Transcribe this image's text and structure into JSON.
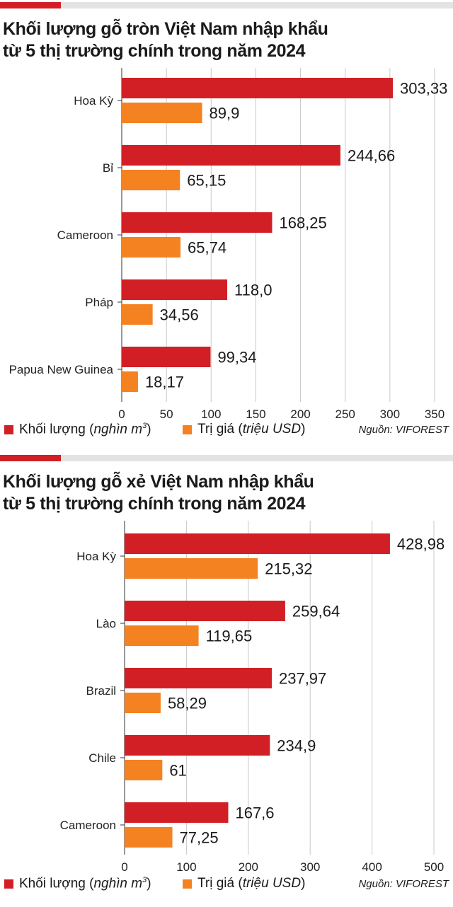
{
  "colors": {
    "accent": "#d21f26",
    "volume": "#d21f26",
    "value": "#f58220",
    "grid": "#c8c8c8",
    "bar_top": "#e3e3e3"
  },
  "chart_data": [
    {
      "type": "bar",
      "orientation": "horizontal",
      "title": "Khối lượng gỗ tròn Việt Nam nhập khẩu từ 5 thị trường chính trong năm 2024",
      "categories": [
        "Hoa Kỳ",
        "Bỉ",
        "Cameroon",
        "Pháp",
        "Papua New Guinea"
      ],
      "series": [
        {
          "name": "Khối lượng (nghìn m3)",
          "values": [
            303.33,
            244.66,
            168.25,
            118.0,
            99.34
          ],
          "labels": [
            "303,33",
            "244,66",
            "168,25",
            "118,0",
            "99,34"
          ]
        },
        {
          "name": "Trị giá (triệu USD)",
          "values": [
            89.9,
            65.15,
            65.74,
            34.56,
            18.17
          ],
          "labels": [
            "89,9",
            "65,15",
            "65,74",
            "34,56",
            "18,17"
          ]
        }
      ],
      "xlim": [
        0,
        350
      ],
      "xticks": [
        0,
        50,
        100,
        150,
        200,
        250,
        300,
        350
      ],
      "grid": true,
      "legend_position": "bottom",
      "source": "VIFOREST"
    },
    {
      "type": "bar",
      "orientation": "horizontal",
      "title": "Khối lượng gỗ xẻ Việt Nam nhập khẩu từ 5 thị trường chính trong năm 2024",
      "categories": [
        "Hoa Kỳ",
        "Lào",
        "Brazil",
        "Chile",
        "Cameroon"
      ],
      "series": [
        {
          "name": "Khối lượng (nghìn m3)",
          "values": [
            428.98,
            259.64,
            237.97,
            234.9,
            167.6
          ],
          "labels": [
            "428,98",
            "259,64",
            "237,97",
            "234,9",
            "167,6"
          ]
        },
        {
          "name": "Trị giá (triệu USD)",
          "values": [
            215.32,
            119.65,
            58.29,
            61,
            77.25
          ],
          "labels": [
            "215,32",
            "119,65",
            "58,29",
            "61",
            "77,25"
          ]
        }
      ],
      "xlim": [
        0,
        500
      ],
      "xticks": [
        0,
        100,
        200,
        300,
        400,
        500
      ],
      "grid": true,
      "legend_position": "bottom",
      "source": "VIFOREST"
    }
  ],
  "chart1": {
    "title_line1": "Khối lượng gỗ tròn Việt Nam nhập khẩu",
    "title_line2": "từ 5 thị trường chính trong năm 2024",
    "legend_volume": "Khối lượng (",
    "legend_volume_italic": "nghìn m",
    "legend_volume_sup": "3",
    "legend_volume_close": ")",
    "legend_value": "Trị giá (",
    "legend_value_italic": "triệu USD",
    "legend_value_close": ")",
    "source_label": "Nguồn",
    "source_name": ": VIFOREST"
  },
  "chart2": {
    "title_line1": "Khối lượng gỗ xẻ Việt Nam nhập khẩu",
    "title_line2": "từ 5 thị trường chính trong năm 2024",
    "legend_volume": "Khối lượng (",
    "legend_volume_italic": "nghìn m",
    "legend_volume_sup": "3",
    "legend_volume_close": ")",
    "legend_value": "Trị giá (",
    "legend_value_italic": "triệu USD",
    "legend_value_close": ")",
    "source_label": "Nguồn",
    "source_name": ": VIFOREST"
  }
}
